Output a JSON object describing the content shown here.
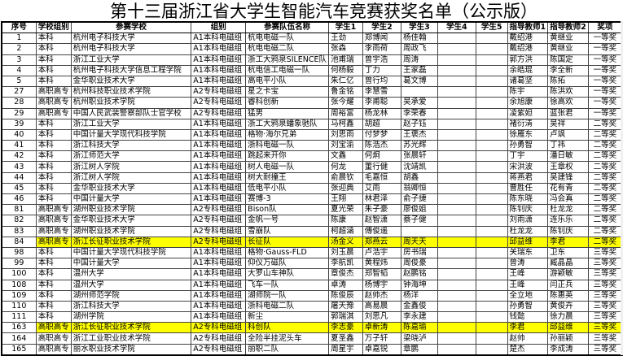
{
  "title": "第十三届浙江省大学生智能汽车竞赛获奖名单（公示版）",
  "columns": [
    "序号",
    "学校组别",
    "参赛学校",
    "组别",
    "参赛队伍名称",
    "学生1",
    "学生2",
    "学生3",
    "学生4",
    "学生5",
    "指导教师1",
    "指导教师2",
    "奖项"
  ],
  "highlight_color": "#ffff00",
  "rows": [
    {
      "cells": [
        "1",
        "本科",
        "杭州电子科技大学",
        "A1本科电磁组",
        "杭电电磁一队",
        "王劲",
        "郑博闻",
        "杨佳翰",
        "",
        "",
        "戴绍港",
        "黄继业",
        "一等奖"
      ],
      "highlight": false
    },
    {
      "cells": [
        "2",
        "本科",
        "杭州电子科技大学",
        "A1本科电磁组",
        "杭电电磁二队",
        "张森",
        "李雨荷",
        "周政飞",
        "",
        "",
        "戴绍港",
        "黄继业",
        "一等奖"
      ],
      "highlight": false
    },
    {
      "cells": [
        "3",
        "本科",
        "浙江工业大学",
        "A1本科电磁组",
        "浙工大鸦泉SILENCE队",
        "池甫瑞",
        "曾宇浩",
        "周涛",
        "",
        "",
        "郭方洪",
        "陈国定",
        "一等奖"
      ],
      "highlight": false
    },
    {
      "cells": [
        "4",
        "本科",
        "杭州电子科技大学信息工程学院",
        "A1本科电磁组",
        "杭电信工电磁一队",
        "何杨毅",
        "丁力",
        "王家磊",
        "",
        "",
        "余皓琨",
        "李全新",
        "一等奖"
      ],
      "highlight": false
    },
    {
      "cells": [
        "5",
        "本科",
        "金华职业技术大学",
        "A1本科电磁组",
        "高电平小队",
        "朱仁亿",
        "曾行均",
        "葛文博",
        "",
        "",
        "诸葛坚",
        "陈拓",
        "一等奖"
      ],
      "highlight": false
    },
    {
      "cells": [
        "27",
        "高职高专",
        "杭州科技职业技术学院",
        "A2专科电磁组",
        "星之卡宝",
        "鲁金铭",
        "李慧雪",
        "",
        "",
        "",
        "陈宇",
        "陈洪欢",
        "一等奖"
      ],
      "highlight": false
    },
    {
      "cells": [
        "28",
        "高职高专",
        "杭州职业技术学院",
        "A2专科电磁组",
        "睿科创新",
        "张今耀",
        "李甫聪",
        "吴承爱",
        "",
        "",
        "余旭康",
        "徐高欢",
        "一等奖"
      ],
      "highlight": false
    },
    {
      "cells": [
        "29",
        "高职高专",
        "中国人民武装警察部队士官学校",
        "A2专科电磁组",
        "猛男",
        "周裕富",
        "杨龙林",
        "李荣春",
        "",
        "",
        "凌紫妲",
        "蓝张君",
        "一等奖"
      ],
      "highlight": false
    },
    {
      "cells": [
        "39",
        "本科",
        "浙江工业大学",
        "A1本科电磁组",
        "浙工大鸦泉蟠象驰队",
        "马柯鑫",
        "胡超",
        "赵子钰",
        "",
        "",
        "褚衍清",
        "吴祥",
        "二等奖"
      ],
      "highlight": false
    },
    {
      "cells": [
        "40",
        "本科",
        "中国计量大学现代科技学院",
        "A1本科电磁组",
        "格物·海尔兄弟",
        "刘思雨",
        "付梦梦",
        "王褒杰",
        "",
        "",
        "徐雁东",
        "卢飒",
        "二等奖"
      ],
      "highlight": false
    },
    {
      "cells": [
        "41",
        "本科",
        "浙江科技大学",
        "A1本科电磁组",
        "浙科电磁一队",
        "刘宝渝",
        "陈浩杰",
        "苏光辉",
        "",
        "",
        "孙勇智",
        "丁祎",
        "二等奖"
      ],
      "highlight": false
    },
    {
      "cells": [
        "42",
        "本科",
        "浙江师范大学",
        "A1本科电磁组",
        "跳起来开你",
        "文鑫",
        "何炯",
        "张晨轩",
        "",
        "",
        "丁宇",
        "潘日敏",
        "二等奖"
      ],
      "highlight": false
    },
    {
      "cells": [
        "43",
        "本科",
        "浙江树人学院",
        "A1本科电磁组",
        "树人电磁一队",
        "何龙",
        "董行健",
        "沈靖凯",
        "",
        "",
        "宋洪波",
        "王章权",
        "二等奖"
      ],
      "highlight": false
    },
    {
      "cells": [
        "44",
        "本科",
        "浙江树人学院",
        "A1本科电磁组",
        "树大耐撞王",
        "俞晨钦",
        "毛嘉恒",
        "胡鑫",
        "",
        "",
        "蒋燕君",
        "吴建锋",
        "二等奖"
      ],
      "highlight": false
    },
    {
      "cells": [
        "45",
        "本科",
        "金华职业技术大学",
        "A1本科电磁组",
        "低电平小队",
        "张迎典",
        "艾雨",
        "翁卿恒",
        "",
        "",
        "曹胜任",
        "花有青",
        "二等奖"
      ],
      "highlight": false
    },
    {
      "cells": [
        "46",
        "本科",
        "中国计量大学",
        "A1本科电磁组",
        "赛博-3",
        "王翔",
        "林君泽",
        "俞子捷",
        "",
        "",
        "陈东晓",
        "冯会真",
        "二等奖"
      ],
      "highlight": false
    },
    {
      "cells": [
        "81",
        "高职高专",
        "湖州职业技术学院",
        "A2专科电磁组",
        "Bison队",
        "夏光荣",
        "朱子豪",
        "廖俊姐",
        "",
        "",
        "陈钊庆",
        "杜龙龙",
        "二等奖"
      ],
      "highlight": false
    },
    {
      "cells": [
        "82",
        "高职高专",
        "金华职业技术大学",
        "A2专科电磁组",
        "金帆一号",
        "陈康",
        "赵智潇",
        "蔡子健",
        "",
        "",
        "刘雨潇",
        "连乐乐",
        "二等奖"
      ],
      "highlight": false
    },
    {
      "cells": [
        "83",
        "高职高专",
        "湖州职业技术学院",
        "A2专科电磁组",
        "雪崩队",
        "柯超涵",
        "傅俊遥",
        "",
        "",
        "",
        "杜龙龙",
        "陈钊庆",
        "二等奖"
      ],
      "highlight": false
    },
    {
      "cells": [
        "84",
        "高职高专",
        "浙江长征职业技术学院",
        "A2专科电磁组",
        "长征队",
        "汤金义",
        "郑燕云",
        "周天天",
        "",
        "",
        "邱益维",
        "李君",
        "二等奖"
      ],
      "highlight": true
    },
    {
      "cells": [
        "98",
        "本科",
        "中国计量大学现代科技学院",
        "A1本科电磁组",
        "格物·Gauss-FLD",
        "刘玉晨",
        "卢浩宇",
        "房书瑞",
        "",
        "",
        "关瑞东",
        "卫东",
        "三等奖"
      ],
      "highlight": false
    },
    {
      "cells": [
        "99",
        "本科",
        "中国计量大学",
        "A1本科电磁组",
        "仰仪万磁队",
        "李航凯",
        "黄程炜",
        "周俊豪",
        "",
        "",
        "曾涛",
        "臧晶晶",
        "三等奖"
      ],
      "highlight": false
    },
    {
      "cells": [
        "100",
        "本科",
        "温州大学",
        "A1本科电磁组",
        "大罗山车神队",
        "章俊杰",
        "郑智韬",
        "赵鹏铭",
        "",
        "",
        "王峰",
        "游颖敏",
        "三等奖"
      ],
      "highlight": false
    },
    {
      "cells": [
        "108",
        "本科",
        "温州大学",
        "A1本科电磁组",
        "飞车一队",
        "卓涛",
        "杨博宇",
        "钟海坤",
        "",
        "",
        "王峰",
        "闫正兵",
        "三等奖"
      ],
      "highlight": false
    },
    {
      "cells": [
        "109",
        "本科",
        "湖州师范学院",
        "A1本科电磁组",
        "湖师院一队",
        "陈俊辰",
        "赵帅杰",
        "杨洋",
        "",
        "",
        "全立地",
        "陈惠英",
        "三等奖"
      ],
      "highlight": false
    },
    {
      "cells": [
        "110",
        "本科",
        "浙江科技大学",
        "A1本科电磁组",
        "浙科电磁二队",
        "屠天豫",
        "高易晨",
        "金鑫俊",
        "",
        "",
        "孙勇智",
        "黄俊卉",
        "三等奖"
      ],
      "highlight": false
    },
    {
      "cells": [
        "111",
        "本科",
        "湖州学院",
        "A1本科电磁组",
        "新尘",
        "郭瑞淇",
        "刘思凡",
        "李永建",
        "",
        "",
        "钱懿",
        "徐力晨",
        "三等奖"
      ],
      "highlight": false
    },
    {
      "cells": [
        "163",
        "高职高专",
        "浙江长征职业技术学院",
        "A2专科电磁组",
        "科创队",
        "李志豪",
        "卓新涛",
        "陈嘉瑜",
        "",
        "",
        "李君",
        "邱益维",
        "三等奖"
      ],
      "highlight": true
    },
    {
      "cells": [
        "164",
        "高职高专",
        "浙江工业职业技术学院",
        "A2专科电磁组",
        "全险半挂泥头车",
        "夏圣鑫",
        "万子轩",
        "梁晓泸",
        "",
        "",
        "赵帅",
        "孙丽颖",
        "三等奖"
      ],
      "highlight": false
    },
    {
      "cells": [
        "165",
        "高职高专",
        "丽水职业技术学院",
        "A2专科电磁组",
        "丽职二队",
        "周星宇",
        "卓嘉锐",
        "章鹏",
        "",
        "",
        "楚杰",
        "李成涛",
        "三等奖"
      ],
      "highlight": false
    }
  ]
}
